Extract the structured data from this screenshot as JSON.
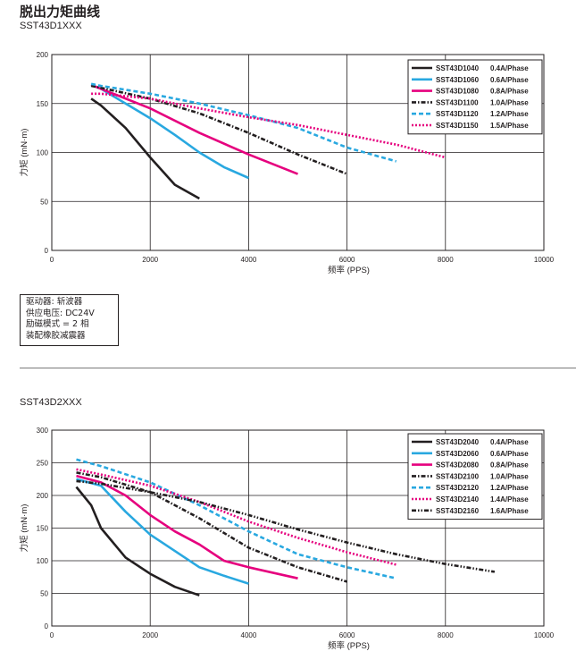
{
  "page_title": "脱出力矩曲线",
  "notes": [
    "驱动器: 斩波器",
    "供应电压: DC24V",
    "励磁模式 = 2 相",
    "装配橡胶减震器"
  ],
  "chart_data": [
    {
      "type": "line",
      "title": "SST43D1XXX",
      "xlabel": "频率 (PPS)",
      "ylabel": "力矩 (mN·m)",
      "xlim": [
        0,
        10000
      ],
      "ylim": [
        0,
        200
      ],
      "xticks": [
        0,
        2000,
        4000,
        6000,
        8000,
        10000
      ],
      "yticks": [
        0,
        50,
        100,
        150,
        200
      ],
      "grid": true,
      "legend_position": "top-right",
      "series": [
        {
          "name": "SST43D1040",
          "current": "0.4A/Phase",
          "color": "#231f20",
          "dash": "solid",
          "x": [
            800,
            1000,
            1500,
            2000,
            2500,
            3000
          ],
          "y": [
            155,
            148,
            125,
            95,
            67,
            53
          ]
        },
        {
          "name": "SST43D1060",
          "current": "0.6A/Phase",
          "color": "#29a8e0",
          "dash": "solid",
          "x": [
            800,
            1000,
            1500,
            2000,
            2500,
            3000,
            3500,
            4000
          ],
          "y": [
            169,
            165,
            150,
            135,
            118,
            100,
            85,
            74
          ]
        },
        {
          "name": "SST43D1080",
          "current": "0.8A/Phase",
          "color": "#e6007e",
          "dash": "solid",
          "x": [
            800,
            1000,
            2000,
            3000,
            4000,
            5000
          ],
          "y": [
            169,
            165,
            145,
            120,
            98,
            78
          ]
        },
        {
          "name": "SST43D1100",
          "current": "1.0A/Phase",
          "color": "#231f20",
          "dash": "dashdot",
          "x": [
            800,
            1000,
            2000,
            3000,
            4000,
            5000,
            6000
          ],
          "y": [
            168,
            166,
            155,
            140,
            120,
            98,
            78
          ]
        },
        {
          "name": "SST43D1120",
          "current": "1.2A/Phase",
          "color": "#29a8e0",
          "dash": "dash",
          "x": [
            800,
            1000,
            2000,
            3000,
            4000,
            5000,
            6000,
            7000
          ],
          "y": [
            170,
            168,
            160,
            150,
            138,
            125,
            105,
            91
          ]
        },
        {
          "name": "SST43D1150",
          "current": "1.5A/Phase",
          "color": "#e6007e",
          "dash": "dot",
          "x": [
            800,
            1000,
            2000,
            3000,
            4000,
            5000,
            6000,
            7000,
            8000
          ],
          "y": [
            160,
            160,
            155,
            145,
            136,
            128,
            118,
            108,
            95
          ]
        }
      ]
    },
    {
      "type": "line",
      "title": "SST43D2XXX",
      "xlabel": "频率 (PPS)",
      "ylabel": "力矩 (mN·m)",
      "xlim": [
        0,
        10000
      ],
      "ylim": [
        0,
        300
      ],
      "xticks": [
        0,
        2000,
        4000,
        6000,
        8000,
        10000
      ],
      "yticks": [
        0,
        50,
        100,
        150,
        200,
        250,
        300
      ],
      "grid": true,
      "legend_position": "top-right",
      "series": [
        {
          "name": "SST43D2040",
          "current": "0.4A/Phase",
          "color": "#231f20",
          "dash": "solid",
          "x": [
            500,
            800,
            1000,
            1500,
            2000,
            2500,
            3000
          ],
          "y": [
            213,
            185,
            150,
            105,
            80,
            60,
            47
          ]
        },
        {
          "name": "SST43D2060",
          "current": "0.6A/Phase",
          "color": "#29a8e0",
          "dash": "solid",
          "x": [
            500,
            1000,
            1500,
            2000,
            2500,
            3000,
            3500,
            4000
          ],
          "y": [
            225,
            215,
            175,
            140,
            115,
            90,
            77,
            65
          ]
        },
        {
          "name": "SST43D2080",
          "current": "0.8A/Phase",
          "color": "#e6007e",
          "dash": "solid",
          "x": [
            500,
            1000,
            1500,
            2000,
            2500,
            3000,
            3500,
            4000,
            5000
          ],
          "y": [
            230,
            220,
            200,
            170,
            145,
            125,
            100,
            90,
            73
          ]
        },
        {
          "name": "SST43D2100",
          "current": "1.0A/Phase",
          "color": "#231f20",
          "dash": "dashdot",
          "x": [
            500,
            1000,
            2000,
            3000,
            4000,
            5000,
            6000
          ],
          "y": [
            235,
            228,
            205,
            165,
            120,
            90,
            68
          ]
        },
        {
          "name": "SST43D2120",
          "current": "1.2A/Phase",
          "color": "#29a8e0",
          "dash": "dash",
          "x": [
            500,
            1000,
            2000,
            3000,
            4000,
            5000,
            6000,
            7000
          ],
          "y": [
            255,
            245,
            220,
            185,
            145,
            110,
            90,
            73
          ]
        },
        {
          "name": "SST43D2140",
          "current": "1.4A/Phase",
          "color": "#e6007e",
          "dash": "dot",
          "x": [
            500,
            1000,
            2000,
            3000,
            4000,
            5000,
            6000,
            7000
          ],
          "y": [
            240,
            232,
            215,
            190,
            160,
            135,
            113,
            94
          ]
        },
        {
          "name": "SST43D2160",
          "current": "1.6A/Phase",
          "color": "#231f20",
          "dash": "dashdotdot",
          "x": [
            500,
            1000,
            2000,
            3000,
            4000,
            5000,
            6000,
            7000,
            8000,
            9000
          ],
          "y": [
            222,
            218,
            205,
            190,
            170,
            148,
            128,
            110,
            95,
            83
          ]
        }
      ]
    }
  ]
}
